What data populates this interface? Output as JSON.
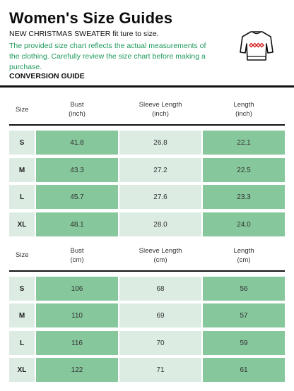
{
  "header": {
    "title": "Women's Size Guides",
    "subtitle": "NEW CHRISTMAS SWEATER fit ture to size.",
    "note": "The provided size chart reflects the actual measurements of the clothing. Carefully review the size chart before making a purchase.",
    "conversion_label": "CONVERSION GUIDE",
    "icon": "sweater-icon"
  },
  "colors": {
    "accent_text": "#1f9a5c",
    "dark_cell": "#86c79c",
    "light_cell": "#dcece3"
  },
  "inch_table": {
    "headers": {
      "size": "Size",
      "bust": [
        "Bust",
        "(inch)"
      ],
      "sleeve": [
        "Sleeve Length",
        "(inch)"
      ],
      "length": [
        "Length",
        "(inch)"
      ]
    },
    "rows": [
      [
        "S",
        "41.8",
        "26.8",
        "22.1"
      ],
      [
        "M",
        "43.3",
        "27.2",
        "22.5"
      ],
      [
        "L",
        "45.7",
        "27.6",
        "23.3"
      ],
      [
        "XL",
        "48.1",
        "28.0",
        "24.0"
      ]
    ]
  },
  "cm_table": {
    "headers": {
      "size": "Size",
      "bust": [
        "Bust",
        "(cm)"
      ],
      "sleeve": [
        "Sleeve Length",
        "(cm)"
      ],
      "length": [
        "Length",
        "(cm)"
      ]
    },
    "rows": [
      [
        "S",
        "106",
        "68",
        "56"
      ],
      [
        "M",
        "110",
        "69",
        "57"
      ],
      [
        "L",
        "116",
        "70",
        "59"
      ],
      [
        "XL",
        "122",
        "71",
        "61"
      ]
    ]
  }
}
